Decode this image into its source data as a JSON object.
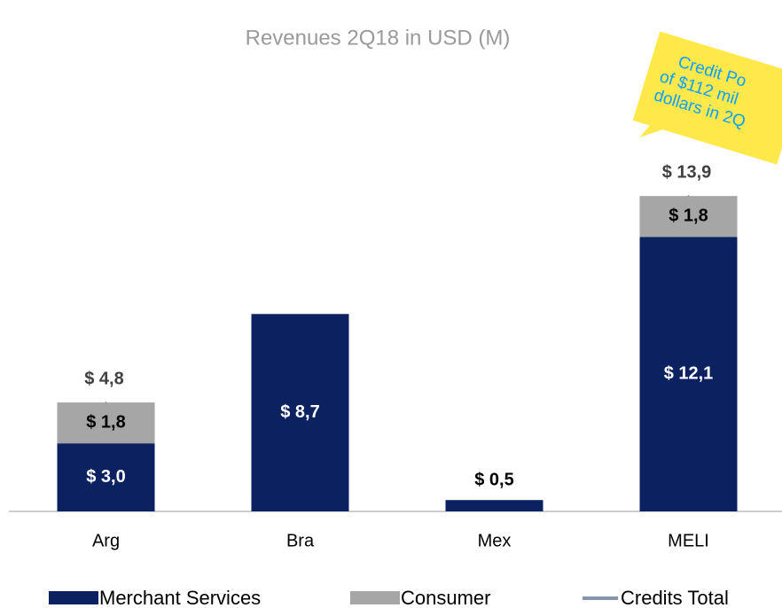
{
  "chart_data": {
    "type": "stacked-bar",
    "title": "Revenues 2Q18  in USD (M)",
    "categories": [
      "Arg",
      "Bra",
      "Mex",
      "MELI"
    ],
    "series": [
      {
        "name": "Merchant Services",
        "color": "#0c2260",
        "values": [
          3.0,
          8.7,
          0.5,
          12.1
        ],
        "value_labels": [
          "$ 3,0",
          "$ 8,7",
          "$ 0,5",
          "$ 12,1"
        ]
      },
      {
        "name": "Consumer",
        "color": "#a6a6a6",
        "values": [
          1.8,
          null,
          null,
          1.8
        ],
        "value_labels": [
          "$ 1,8",
          null,
          null,
          "$ 1,8"
        ]
      },
      {
        "name": "Credits Total",
        "color": "#8496b0",
        "values": [
          4.8,
          null,
          null,
          13.9
        ],
        "value_labels": [
          "$ 4,8",
          null,
          null,
          "$ 13,9"
        ]
      }
    ],
    "annotation": [
      "Credit Po",
      "of $112 mil",
      "dollars in 2Q"
    ]
  }
}
